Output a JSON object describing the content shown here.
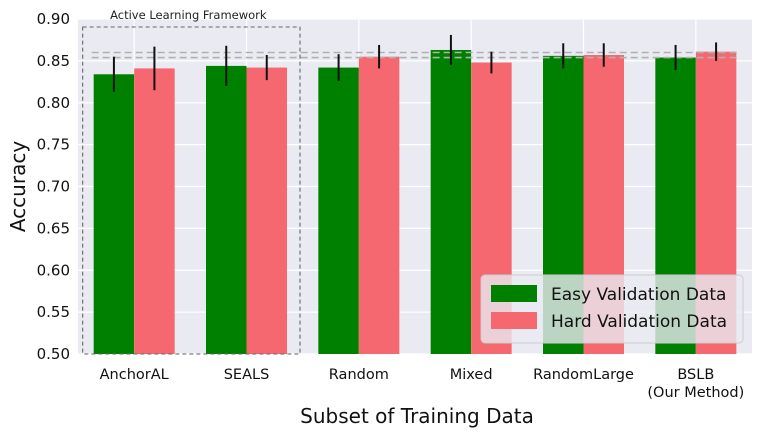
{
  "chart_data": {
    "type": "bar",
    "xlabel": "Subset of Training Data",
    "ylabel": "Accuracy",
    "ylim": [
      0.5,
      0.9
    ],
    "yticks": [
      "0.50",
      "0.55",
      "0.60",
      "0.65",
      "0.70",
      "0.75",
      "0.80",
      "0.85",
      "0.90"
    ],
    "categories": [
      [
        "AnchorAL"
      ],
      [
        "SEALS"
      ],
      [
        "Random"
      ],
      [
        "Mixed"
      ],
      [
        "RandomLarge"
      ],
      [
        "BSLB",
        "(Our Method)"
      ]
    ],
    "series": [
      {
        "name": "Easy Validation Data",
        "color": "#008000",
        "values": [
          0.834,
          0.844,
          0.842,
          0.863,
          0.856,
          0.854
        ],
        "errors": [
          0.021,
          0.024,
          0.016,
          0.018,
          0.015,
          0.015
        ]
      },
      {
        "name": "Hard Validation Data",
        "color": "#f5686f",
        "values": [
          0.841,
          0.842,
          0.855,
          0.848,
          0.857,
          0.861
        ],
        "errors": [
          0.026,
          0.015,
          0.014,
          0.013,
          0.014,
          0.011
        ]
      }
    ],
    "reference_lines": [
      0.86,
      0.854
    ],
    "annotation": "Active Learning Framework",
    "grid": true,
    "legend_position": "lower-right",
    "background": "#eaeaf2"
  }
}
